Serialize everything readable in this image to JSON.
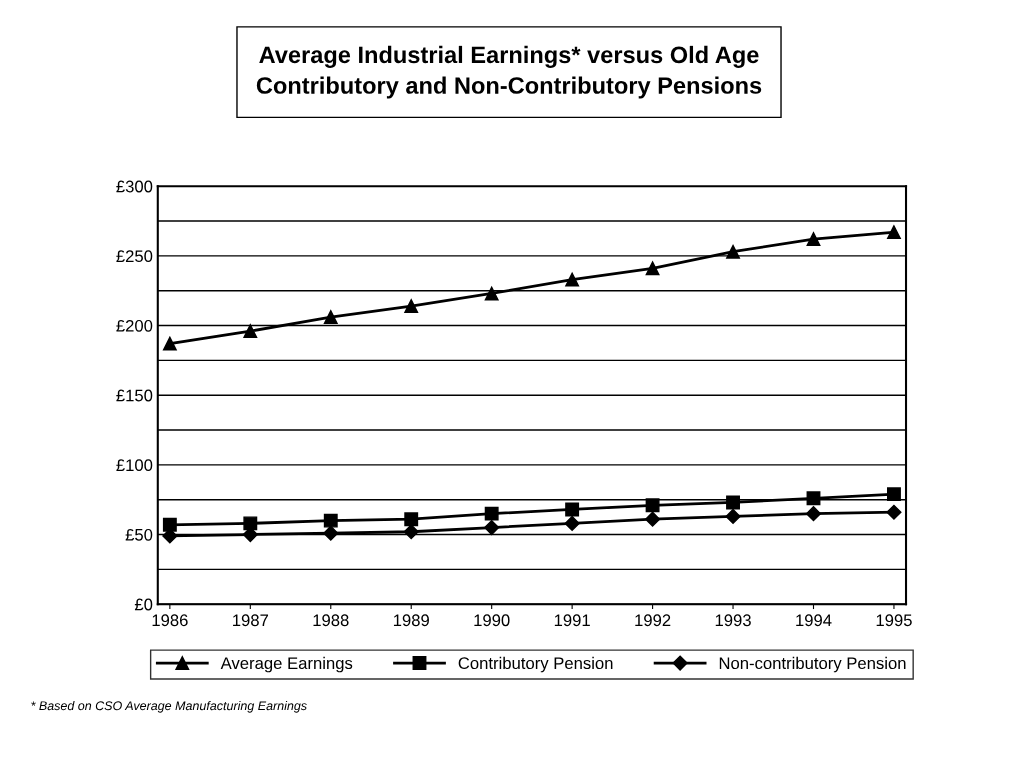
{
  "chart_data": {
    "type": "line",
    "title": "Average Industrial Earnings* versus Old Age\nContributory and Non-Contributory Pensions",
    "categories": [
      "1986",
      "1987",
      "1988",
      "1989",
      "1990",
      "1991",
      "1992",
      "1993",
      "1994",
      "1995"
    ],
    "series": [
      {
        "name": "Average Earnings",
        "color": "#000000",
        "marker": "triangle",
        "values": [
          187,
          196,
          206,
          214,
          223,
          233,
          241,
          253,
          262,
          267
        ]
      },
      {
        "name": "Contributory Pension",
        "color": "#000000",
        "marker": "square",
        "values": [
          57,
          58,
          60,
          61,
          65,
          68,
          71,
          73,
          76,
          79
        ]
      },
      {
        "name": "Non-contributory Pension",
        "color": "#000000",
        "marker": "diamond",
        "values": [
          49,
          50,
          51,
          52,
          55,
          58,
          61,
          63,
          65,
          66
        ]
      }
    ],
    "ylim": [
      0,
      300
    ],
    "yticks": [
      {
        "value": 0,
        "label": "£0"
      },
      {
        "value": 25,
        "label": null
      },
      {
        "value": 50,
        "label": "£50"
      },
      {
        "value": 75,
        "label": null
      },
      {
        "value": 100,
        "label": "£100"
      },
      {
        "value": 125,
        "label": null
      },
      {
        "value": 150,
        "label": "£150"
      },
      {
        "value": 175,
        "label": null
      },
      {
        "value": 200,
        "label": "£200"
      },
      {
        "value": 225,
        "label": null
      },
      {
        "value": 250,
        "label": "£250"
      },
      {
        "value": 275,
        "label": null
      },
      {
        "value": 300,
        "label": "£300"
      }
    ],
    "grid": "y",
    "legend": "bottom",
    "line_style": "solid",
    "annotations": [
      "* Based on CSO Average Manufacturing Earnings"
    ]
  }
}
